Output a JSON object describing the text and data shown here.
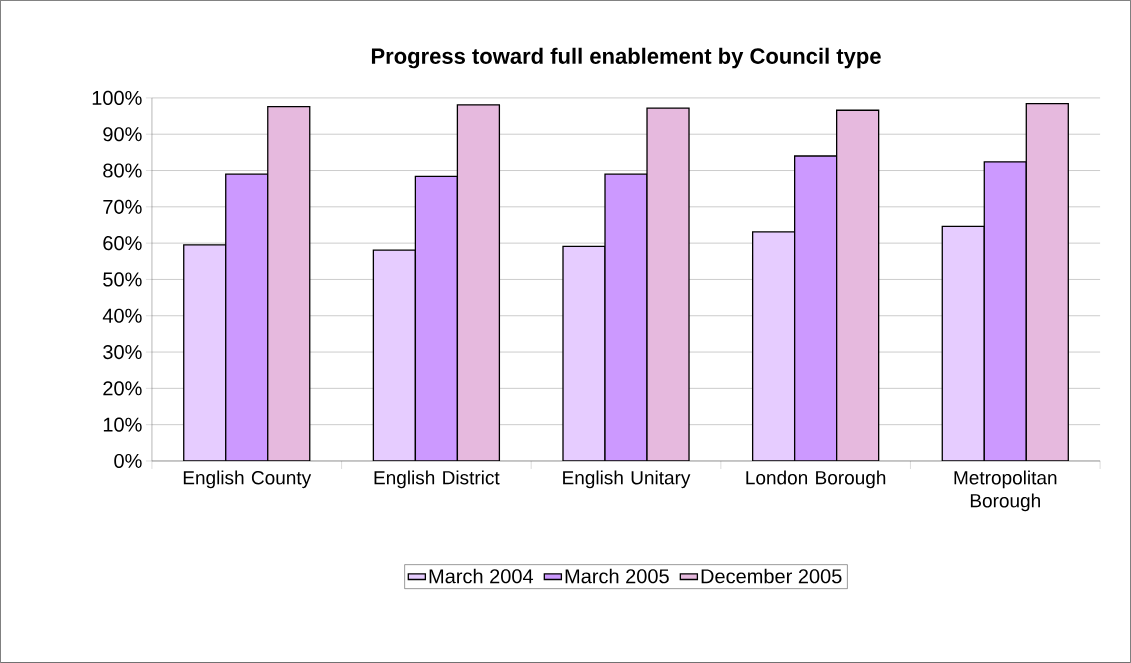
{
  "chart_data": {
    "type": "bar",
    "title": "Progress toward full enablement by Council type",
    "categories": [
      "English County",
      "English District",
      "English Unitary",
      "London Borough",
      "Metropolitan Borough"
    ],
    "series": [
      {
        "name": "March 2004",
        "color": "#e6ccff",
        "values": [
          59.5,
          58.1,
          59.1,
          63.1,
          64.6
        ]
      },
      {
        "name": "March 2005",
        "color": "#cc99ff",
        "values": [
          79.0,
          78.4,
          79.0,
          84.0,
          82.4
        ]
      },
      {
        "name": "December 2005",
        "color": "#e6b9de",
        "values": [
          97.6,
          98.1,
          97.2,
          96.6,
          98.4
        ]
      }
    ],
    "ylim": [
      0,
      100
    ],
    "yticks": [
      {
        "value": 0,
        "label": "0%"
      },
      {
        "value": 10,
        "label": "10%"
      },
      {
        "value": 20,
        "label": "20%"
      },
      {
        "value": 30,
        "label": "30%"
      },
      {
        "value": 40,
        "label": "40%"
      },
      {
        "value": 50,
        "label": "50%"
      },
      {
        "value": 60,
        "label": "60%"
      },
      {
        "value": 70,
        "label": "70%"
      },
      {
        "value": 80,
        "label": "80%"
      },
      {
        "value": 90,
        "label": "90%"
      },
      {
        "value": 100,
        "label": "100%"
      }
    ],
    "grid": "y",
    "legend": "bottom"
  }
}
